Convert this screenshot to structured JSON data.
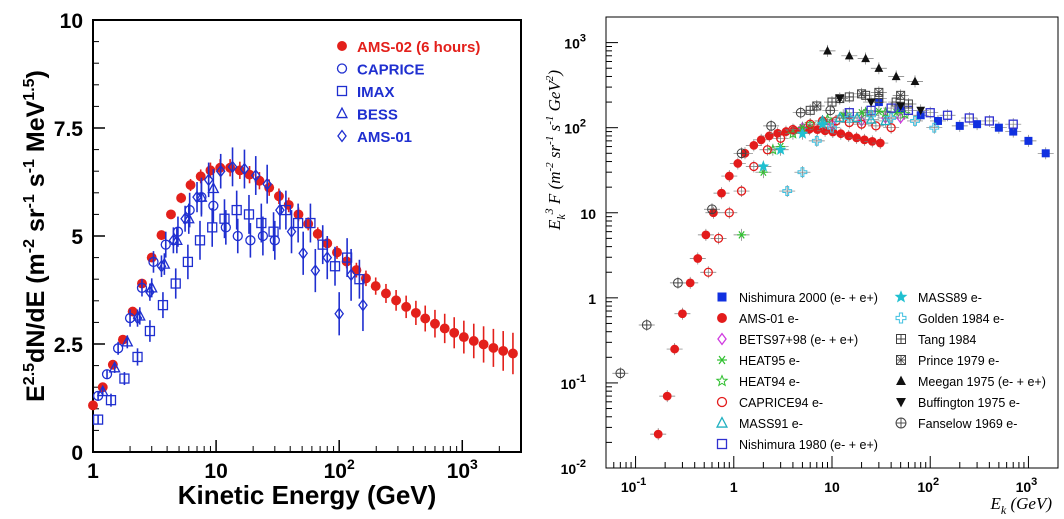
{
  "chart_data": [
    {
      "type": "scatter",
      "title": "",
      "xlabel": "Kinetic Energy (GeV)",
      "ylabel": "E^2.5 dN/dE (m^-2 sr^-1 s^-1 MeV^1.5)",
      "xscale": "log",
      "xlim": [
        1,
        3000
      ],
      "ylim": [
        0,
        10
      ],
      "yticks": [
        "0",
        "2.5",
        "5",
        "7.5",
        "10"
      ],
      "xticks": [
        "1",
        "10",
        "10^2",
        "10^3"
      ],
      "legend_placement": "top-right",
      "series": [
        {
          "name": "AMS-02 (6 hours)",
          "color": "#e3201b",
          "marker": "dot",
          "x": [
            1.0,
            1.2,
            1.45,
            1.75,
            2.1,
            2.5,
            3.0,
            3.6,
            4.3,
            5.2,
            6.2,
            7.5,
            9.0,
            10.8,
            13,
            15.6,
            18.7,
            22.5,
            27,
            32.4,
            38.9,
            46.7,
            56,
            67,
            80,
            96,
            115,
            138,
            165,
            198,
            240,
            290,
            350,
            420,
            500,
            600,
            720,
            860,
            1030,
            1240,
            1490,
            1790,
            2150,
            2580
          ],
          "y": [
            1.08,
            1.5,
            2.02,
            2.6,
            3.25,
            3.9,
            4.5,
            5.02,
            5.5,
            5.88,
            6.18,
            6.38,
            6.52,
            6.58,
            6.58,
            6.52,
            6.42,
            6.28,
            6.12,
            5.92,
            5.72,
            5.5,
            5.28,
            5.05,
            4.83,
            4.62,
            4.41,
            4.21,
            4.02,
            3.84,
            3.67,
            3.51,
            3.36,
            3.22,
            3.09,
            2.97,
            2.86,
            2.76,
            2.66,
            2.57,
            2.49,
            2.41,
            2.34,
            2.28
          ],
          "err": [
            0.05,
            0.05,
            0.05,
            0.05,
            0.05,
            0.06,
            0.07,
            0.08,
            0.1,
            0.12,
            0.14,
            0.16,
            0.18,
            0.2,
            0.2,
            0.2,
            0.2,
            0.2,
            0.19,
            0.18,
            0.17,
            0.16,
            0.15,
            0.15,
            0.15,
            0.15,
            0.16,
            0.17,
            0.18,
            0.2,
            0.22,
            0.24,
            0.26,
            0.28,
            0.3,
            0.32,
            0.34,
            0.36,
            0.38,
            0.4,
            0.42,
            0.44,
            0.46,
            0.48
          ]
        },
        {
          "name": "CAPRICE",
          "color": "#1f2fd0",
          "marker": "circle",
          "x": [
            1.1,
            1.3,
            1.6,
            2.0,
            2.5,
            3.1,
            3.9,
            4.9,
            6.1,
            7.6,
            9.5,
            12,
            15,
            19,
            24,
            30
          ],
          "y": [
            1.3,
            1.8,
            2.4,
            3.1,
            3.8,
            4.4,
            4.8,
            5.1,
            5.6,
            5.9,
            5.7,
            5.2,
            5.0,
            4.9,
            5.0,
            4.9
          ],
          "err": [
            0.1,
            0.1,
            0.15,
            0.2,
            0.2,
            0.25,
            0.3,
            0.35,
            0.4,
            0.45,
            0.4,
            0.4,
            0.4,
            0.4,
            0.45,
            0.45
          ]
        },
        {
          "name": "IMAX",
          "color": "#1f2fd0",
          "marker": "square",
          "x": [
            1.1,
            1.4,
            1.8,
            2.3,
            2.9,
            3.7,
            4.7,
            5.9,
            7.4,
            9.3,
            11.7,
            14.7,
            18.5,
            23.3,
            29.3,
            36.9,
            46.4,
            58.4,
            73.5,
            92.5,
            116,
            146
          ],
          "y": [
            0.75,
            1.2,
            1.7,
            2.2,
            2.8,
            3.4,
            3.9,
            4.4,
            4.9,
            5.2,
            5.4,
            5.6,
            5.5,
            5.3,
            5.1,
            5.6,
            5.3,
            5.3,
            4.8,
            4.3,
            4.5,
            4.0
          ],
          "err": [
            0.1,
            0.15,
            0.15,
            0.2,
            0.25,
            0.3,
            0.35,
            0.4,
            0.45,
            0.45,
            0.45,
            0.45,
            0.45,
            0.45,
            0.45,
            0.45,
            0.45,
            0.45,
            0.45,
            0.45,
            0.45,
            0.45
          ]
        },
        {
          "name": "BESS",
          "color": "#1f2fd0",
          "marker": "triangle",
          "x": [
            1.2,
            1.5,
            1.9,
            2.4,
            3.0,
            3.8,
            4.8,
            6.0,
            7.6,
            9.5
          ],
          "y": [
            1.4,
            1.95,
            2.55,
            3.15,
            3.8,
            4.35,
            4.9,
            5.4,
            5.9,
            6.1
          ],
          "err": [
            0.1,
            0.12,
            0.15,
            0.2,
            0.22,
            0.25,
            0.3,
            0.35,
            0.4,
            0.45
          ]
        },
        {
          "name": "AMS-01",
          "color": "#1f2fd0",
          "marker": "diamond",
          "x": [
            2.3,
            2.9,
            3.6,
            4.5,
            5.6,
            7.0,
            8.7,
            10.9,
            13.6,
            17,
            21,
            26,
            33,
            41,
            51,
            64,
            80,
            100,
            125,
            156
          ],
          "y": [
            3.1,
            3.7,
            4.3,
            4.9,
            5.4,
            5.9,
            6.3,
            6.5,
            6.6,
            6.55,
            6.4,
            6.2,
            5.6,
            5.1,
            4.6,
            4.2,
            4.5,
            3.2,
            4.1,
            3.4
          ],
          "err": [
            0.2,
            0.2,
            0.25,
            0.3,
            0.3,
            0.35,
            0.4,
            0.4,
            0.45,
            0.45,
            0.45,
            0.45,
            0.45,
            0.5,
            0.5,
            0.5,
            0.5,
            0.5,
            0.6,
            0.6
          ]
        }
      ]
    },
    {
      "type": "scatter",
      "title": "",
      "xlabel": "E_k (GeV)",
      "ylabel": "E_k^3 F (m^-2 sr^-1 s^-1 GeV^2)",
      "xscale": "log",
      "yscale": "log",
      "xlim": [
        0.05,
        2000
      ],
      "ylim": [
        0.01,
        2000
      ],
      "legend_placement": "bottom-right",
      "series": [
        {
          "name": "Nishimura 2000 (e- + e+)",
          "color": "#1030e0",
          "marker": "filled-square",
          "x": [
            30,
            50,
            80,
            120,
            200,
            300,
            500,
            700,
            1000,
            1500
          ],
          "y": [
            200,
            170,
            140,
            120,
            105,
            110,
            100,
            90,
            70,
            50
          ]
        },
        {
          "name": "AMS-01 e-",
          "color": "#e31b1b",
          "marker": "filled-circle",
          "x": [
            0.17,
            0.21,
            0.25,
            0.3,
            0.36,
            0.43,
            0.52,
            0.62,
            0.75,
            0.9,
            1.1,
            1.3,
            1.6,
            1.9,
            2.3,
            2.8,
            3.4,
            4.1,
            4.9,
            5.9,
            7.1,
            8.5,
            10.2,
            12.3,
            14.8,
            17.8,
            21.4,
            25.7,
            31
          ],
          "y": [
            0.025,
            0.07,
            0.25,
            0.65,
            1.5,
            2.9,
            5.5,
            10,
            17,
            27,
            38,
            50,
            62,
            72,
            80,
            86,
            90,
            93,
            95,
            96,
            95,
            92,
            89,
            85,
            80,
            76,
            72,
            69,
            66
          ]
        },
        {
          "name": "BETS97+98 (e- + e+)",
          "color": "#d03be0",
          "marker": "diamond",
          "x": [
            5,
            10,
            20,
            35,
            50
          ],
          "y": [
            100,
            110,
            120,
            130,
            130
          ]
        },
        {
          "name": "HEAT95 e-",
          "color": "#30c030",
          "marker": "asterisk",
          "x": [
            1.2,
            2,
            3,
            5,
            8,
            13,
            20,
            30,
            45
          ],
          "y": [
            5.5,
            30,
            60,
            100,
            120,
            140,
            150,
            155,
            150
          ]
        },
        {
          "name": "HEAT94 e-",
          "color": "#30c030",
          "marker": "star",
          "x": [
            2.5,
            4,
            6,
            9,
            14,
            22,
            35,
            55
          ],
          "y": [
            55,
            85,
            110,
            125,
            140,
            150,
            150,
            145
          ]
        },
        {
          "name": "CAPRICE94 e-",
          "color": "#e31b1b",
          "marker": "circle",
          "x": [
            0.55,
            0.7,
            0.9,
            1.2,
            1.6,
            2.2,
            3,
            4,
            6,
            8,
            11,
            15,
            20,
            28,
            40
          ],
          "y": [
            2.0,
            5,
            10,
            18,
            35,
            55,
            75,
            95,
            110,
            120,
            120,
            115,
            110,
            105,
            100
          ]
        },
        {
          "name": "MASS91 e-",
          "color": "#20b0c0",
          "marker": "triangle",
          "x": [
            8,
            12,
            18,
            25,
            35
          ],
          "y": [
            120,
            130,
            130,
            125,
            120
          ]
        },
        {
          "name": "Nishimura 1980 (e- + e+)",
          "color": "#3030d0",
          "marker": "square",
          "x": [
            15,
            25,
            40,
            60,
            100,
            150,
            250,
            400,
            700
          ],
          "y": [
            150,
            160,
            170,
            160,
            150,
            140,
            130,
            120,
            110
          ]
        },
        {
          "name": "MASS89 e-",
          "color": "#20c0d0",
          "marker": "filled-star",
          "x": [
            2,
            3,
            5,
            8
          ],
          "y": [
            35,
            55,
            85,
            110
          ]
        },
        {
          "name": "Golden 1984 e-",
          "color": "#40c0e0",
          "marker": "open-cross",
          "x": [
            3.5,
            5,
            7,
            10,
            15,
            25,
            40,
            70,
            110
          ],
          "y": [
            18,
            30,
            70,
            100,
            130,
            140,
            130,
            120,
            100
          ]
        },
        {
          "name": "Tang 1984",
          "color": "#404040",
          "marker": "boxed-plus",
          "x": [
            6,
            10,
            15,
            22,
            30,
            45,
            60
          ],
          "y": [
            160,
            200,
            230,
            240,
            220,
            200,
            190
          ]
        },
        {
          "name": "Prince 1979 e-",
          "color": "#404040",
          "marker": "boxed-cross",
          "x": [
            7,
            12,
            20,
            30,
            50
          ],
          "y": [
            180,
            220,
            250,
            260,
            240
          ]
        },
        {
          "name": "Meegan 1975 (e- + e+)",
          "color": "#111111",
          "marker": "filled-triangle",
          "x": [
            9,
            15,
            22,
            30,
            45,
            70
          ],
          "y": [
            800,
            700,
            650,
            500,
            400,
            350
          ]
        },
        {
          "name": "Buffington 1975 e-",
          "color": "#111111",
          "marker": "filled-triangle-down",
          "x": [
            12,
            25,
            50,
            80
          ],
          "y": [
            220,
            200,
            180,
            160
          ]
        },
        {
          "name": "Fanselow 1969 e-",
          "color": "#404040",
          "marker": "circle-plus",
          "x": [
            0.07,
            0.13,
            0.27,
            0.6,
            1.2,
            2.4,
            4.8,
            9.6
          ],
          "y": [
            0.13,
            0.48,
            1.5,
            11,
            50,
            105,
            150,
            160
          ]
        }
      ]
    }
  ]
}
